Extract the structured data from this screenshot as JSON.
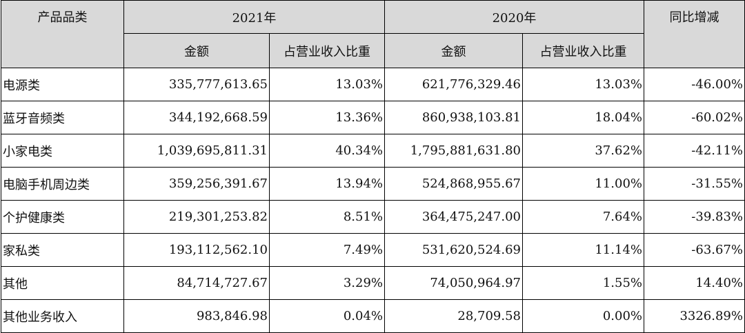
{
  "header": {
    "category": "产品品类",
    "year_2021": "2021年",
    "year_2020": "2020年",
    "change": "同比增减",
    "amount_2021": "金额",
    "share_2021": "占营业收入比重",
    "amount_2020": "金额",
    "share_2020": "占营业收入比重"
  },
  "rows": [
    {
      "name": "电源类",
      "amount_2021": "335,777,613.65",
      "share_2021": "13.03%",
      "amount_2020": "621,776,329.46",
      "share_2020": "13.03%",
      "change": "-46.00%"
    },
    {
      "name": "蓝牙音频类",
      "amount_2021": "344,192,668.59",
      "share_2021": "13.36%",
      "amount_2020": "860,938,103.81",
      "share_2020": "18.04%",
      "change": "-60.02%"
    },
    {
      "name": "小家电类",
      "amount_2021": "1,039,695,811.31",
      "share_2021": "40.34%",
      "amount_2020": "1,795,881,631.80",
      "share_2020": "37.62%",
      "change": "-42.11%"
    },
    {
      "name": "电脑手机周边类",
      "amount_2021": "359,256,391.67",
      "share_2021": "13.94%",
      "amount_2020": "524,868,955.67",
      "share_2020": "11.00%",
      "change": "-31.55%"
    },
    {
      "name": "个护健康类",
      "amount_2021": "219,301,253.82",
      "share_2021": "8.51%",
      "amount_2020": "364,475,247.00",
      "share_2020": "7.64%",
      "change": "-39.83%"
    },
    {
      "name": "家私类",
      "amount_2021": "193,112,562.10",
      "share_2021": "7.49%",
      "amount_2020": "531,620,524.69",
      "share_2020": "11.14%",
      "change": "-63.67%"
    },
    {
      "name": "其他",
      "amount_2021": "84,714,727.67",
      "share_2021": "3.29%",
      "amount_2020": "74,050,964.97",
      "share_2020": "1.55%",
      "change": "14.40%"
    },
    {
      "name": "其他业务收入",
      "amount_2021": "983,846.98",
      "share_2021": "0.04%",
      "amount_2020": "28,709.58",
      "share_2020": "0.00%",
      "change": "3326.89%"
    }
  ]
}
